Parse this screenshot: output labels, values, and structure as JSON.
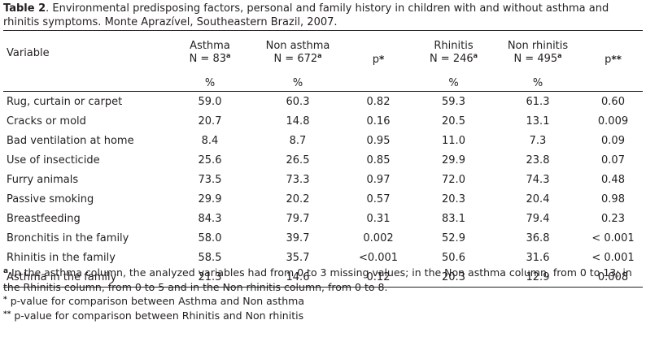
{
  "caption": {
    "label": "Table 2",
    "text": ". Environmental predisposing factors, personal and family history in children with and without asthma and rhinitis symptoms. Monte Aprazível, Southeastern Brazil, 2007."
  },
  "header": {
    "variable": "Variable",
    "asthma": "Asthma",
    "asthma_n": "N = 83",
    "non_asthma": "Non asthma",
    "non_asthma_n": "N = 672",
    "p1": "p",
    "p1_mark": "*",
    "rhinitis": "Rhinitis",
    "rhinitis_n": "N = 246",
    "non_rhinitis": "Non rhinitis",
    "non_rhinitis_n": "N = 495",
    "p2": "p",
    "p2_mark": "**",
    "sup_a": "a",
    "pct": "%"
  },
  "rows": [
    {
      "variable": "Rug, curtain or carpet",
      "asthma": "59.0",
      "non_asthma": "60.3",
      "p1": "0.82",
      "rhinitis": "59.3",
      "non_rhinitis": "61.3",
      "p2": "0.60"
    },
    {
      "variable": "Cracks or mold",
      "asthma": "20.7",
      "non_asthma": "14.8",
      "p1": "0.16",
      "rhinitis": "20.5",
      "non_rhinitis": "13.1",
      "p2": "0.009"
    },
    {
      "variable": "Bad ventilation at home",
      "asthma": "8.4",
      "non_asthma": "8.7",
      "p1": "0.95",
      "rhinitis": "11.0",
      "non_rhinitis": "7.3",
      "p2": "0.09"
    },
    {
      "variable": "Use of insecticide",
      "asthma": "25.6",
      "non_asthma": "26.5",
      "p1": "0.85",
      "rhinitis": "29.9",
      "non_rhinitis": "23.8",
      "p2": "0.07"
    },
    {
      "variable": "Furry animals",
      "asthma": "73.5",
      "non_asthma": "73.3",
      "p1": "0.97",
      "rhinitis": "72.0",
      "non_rhinitis": "74.3",
      "p2": "0.48"
    },
    {
      "variable": "Passive smoking",
      "asthma": "29.9",
      "non_asthma": "20.2",
      "p1": "0.57",
      "rhinitis": "20.3",
      "non_rhinitis": "20.4",
      "p2": "0.98"
    },
    {
      "variable": "Breastfeeding",
      "asthma": "84.3",
      "non_asthma": "79.7",
      "p1": "0.31",
      "rhinitis": "83.1",
      "non_rhinitis": "79.4",
      "p2": "0.23"
    },
    {
      "variable": "Bronchitis in the family",
      "asthma": "58.0",
      "non_asthma": "39.7",
      "p1": "0.002",
      "rhinitis": "52.9",
      "non_rhinitis": "36.8",
      "p2": "< 0.001"
    },
    {
      "variable": "Rhinitis in the family",
      "asthma": "58.5",
      "non_asthma": "35.7",
      "p1": "<0.001",
      "rhinitis": "50.6",
      "non_rhinitis": "31.6",
      "p2": "< 0.001"
    },
    {
      "variable": "Asthma in the family",
      "asthma": "21.3",
      "non_asthma": "14.6",
      "p1": "0.12",
      "rhinitis": "20.3",
      "non_rhinitis": "12.9",
      "p2": "0.008"
    }
  ],
  "notes": [
    {
      "mark": "a",
      "text": " In the asthma column, the analyzed variables had from 0 to 3 missing values; in the Non asthma column, from 0 to 13; in the Rhinitis column, from 0 to 5 and in the Non rhinitis column, from 0 to 8."
    },
    {
      "mark": "*",
      "text": " p-value for comparison between Asthma and Non asthma"
    },
    {
      "mark": "**",
      "text": " p-value for comparison between Rhinitis and Non rhinitis"
    }
  ]
}
